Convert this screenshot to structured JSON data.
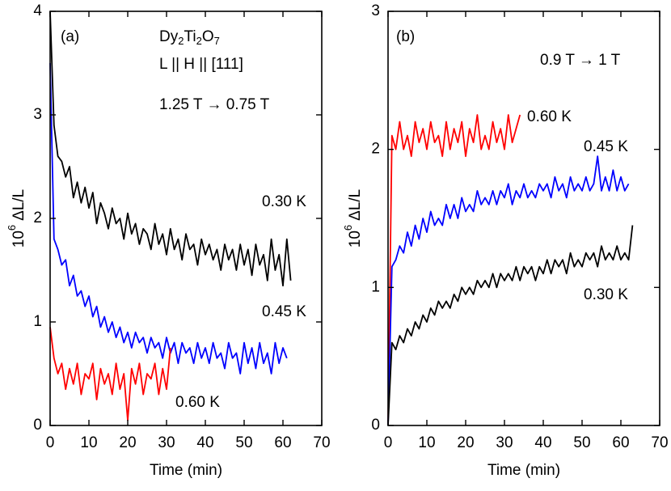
{
  "chart_data": [
    {
      "type": "line",
      "xlabel": "Time (min)",
      "ylabel": [
        "10",
        "6",
        "ΔL/L"
      ],
      "annotations": [
        "(a)",
        "L || H || [111]",
        "1.25 T → 0.75 T"
      ],
      "compound": [
        "Dy",
        "2",
        "Ti",
        "2",
        "O",
        "7"
      ],
      "xlim": [
        0,
        70
      ],
      "ylim": [
        0,
        4
      ],
      "xticks": [
        0,
        10,
        20,
        30,
        40,
        50,
        60,
        70
      ],
      "yticks": [
        0,
        1,
        2,
        3,
        4
      ],
      "series": [
        {
          "name": "0.30 K",
          "color": "#000000",
          "x": [
            0,
            1,
            2,
            3,
            4,
            5,
            6,
            7,
            8,
            9,
            10,
            11,
            12,
            13,
            14,
            15,
            16,
            17,
            18,
            19,
            20,
            21,
            22,
            23,
            24,
            25,
            26,
            27,
            28,
            29,
            30,
            31,
            32,
            33,
            34,
            35,
            36,
            37,
            38,
            39,
            40,
            41,
            42,
            43,
            44,
            45,
            46,
            47,
            48,
            49,
            50,
            51,
            52,
            53,
            54,
            55,
            56,
            57,
            58,
            59,
            60,
            61,
            62
          ],
          "values": [
            4.0,
            2.9,
            2.6,
            2.55,
            2.4,
            2.5,
            2.2,
            2.35,
            2.15,
            2.3,
            2.1,
            2.25,
            1.95,
            2.15,
            2.05,
            1.9,
            2.1,
            1.95,
            2.0,
            1.8,
            2.05,
            1.85,
            1.95,
            1.75,
            1.9,
            1.85,
            1.7,
            1.95,
            1.75,
            1.85,
            1.65,
            1.9,
            1.7,
            1.8,
            1.6,
            1.85,
            1.7,
            1.75,
            1.55,
            1.8,
            1.65,
            1.75,
            1.6,
            1.7,
            1.5,
            1.75,
            1.6,
            1.7,
            1.5,
            1.75,
            1.55,
            1.7,
            1.45,
            1.75,
            1.55,
            1.65,
            1.4,
            1.8,
            1.5,
            1.65,
            1.35,
            1.8,
            1.4
          ]
        },
        {
          "name": "0.45 K",
          "color": "#0000ff",
          "x": [
            0,
            1,
            2,
            3,
            4,
            5,
            6,
            7,
            8,
            9,
            10,
            11,
            12,
            13,
            14,
            15,
            16,
            17,
            18,
            19,
            20,
            21,
            22,
            23,
            24,
            25,
            26,
            27,
            28,
            29,
            30,
            31,
            32,
            33,
            34,
            35,
            36,
            37,
            38,
            39,
            40,
            41,
            42,
            43,
            44,
            45,
            46,
            47,
            48,
            49,
            50,
            51,
            52,
            53,
            54,
            55,
            56,
            57,
            58,
            59,
            60,
            61
          ],
          "values": [
            3.5,
            1.8,
            1.7,
            1.55,
            1.6,
            1.35,
            1.45,
            1.25,
            1.3,
            1.15,
            1.25,
            1.05,
            1.15,
            0.95,
            1.05,
            0.9,
            1.0,
            0.85,
            0.95,
            0.8,
            0.9,
            0.75,
            0.9,
            0.8,
            0.85,
            0.7,
            0.85,
            0.75,
            0.8,
            0.65,
            0.85,
            0.7,
            0.8,
            0.6,
            0.8,
            0.7,
            0.75,
            0.6,
            0.8,
            0.65,
            0.75,
            0.6,
            0.8,
            0.65,
            0.7,
            0.55,
            0.8,
            0.65,
            0.7,
            0.5,
            0.8,
            0.6,
            0.75,
            0.55,
            0.8,
            0.6,
            0.7,
            0.5,
            0.8,
            0.6,
            0.75,
            0.65
          ]
        },
        {
          "name": "0.60 K",
          "color": "#ff0000",
          "x": [
            0,
            1,
            2,
            3,
            4,
            5,
            6,
            7,
            8,
            9,
            10,
            11,
            12,
            13,
            14,
            15,
            16,
            17,
            18,
            19,
            20,
            21,
            22,
            23,
            24,
            25,
            26,
            27,
            28,
            29,
            30,
            31
          ],
          "values": [
            0.95,
            0.65,
            0.5,
            0.6,
            0.35,
            0.55,
            0.4,
            0.6,
            0.3,
            0.5,
            0.45,
            0.6,
            0.25,
            0.55,
            0.4,
            0.5,
            0.3,
            0.6,
            0.35,
            0.5,
            0.05,
            0.55,
            0.4,
            0.6,
            0.3,
            0.5,
            0.45,
            0.6,
            0.3,
            0.55,
            0.35,
            0.75
          ]
        }
      ]
    },
    {
      "type": "line",
      "xlabel": "Time (min)",
      "ylabel": [
        "10",
        "6",
        "ΔL/L"
      ],
      "annotations": [
        "(b)",
        "0.9 T → 1 T"
      ],
      "xlim": [
        0,
        70
      ],
      "ylim": [
        0,
        3
      ],
      "xticks": [
        0,
        10,
        20,
        30,
        40,
        50,
        60,
        70
      ],
      "yticks": [
        0,
        1,
        2,
        3
      ],
      "series": [
        {
          "name": "0.60 K",
          "color": "#ff0000",
          "x": [
            0,
            1,
            2,
            3,
            4,
            5,
            6,
            7,
            8,
            9,
            10,
            11,
            12,
            13,
            14,
            15,
            16,
            17,
            18,
            19,
            20,
            21,
            22,
            23,
            24,
            25,
            26,
            27,
            28,
            29,
            30,
            31,
            32,
            33,
            34
          ],
          "values": [
            0,
            2.1,
            2.0,
            2.2,
            2.0,
            2.1,
            1.95,
            2.2,
            2.05,
            2.15,
            2.0,
            2.2,
            2.05,
            2.1,
            1.95,
            2.2,
            2.0,
            2.15,
            2.05,
            2.2,
            1.95,
            2.15,
            2.05,
            2.25,
            2.0,
            2.1,
            2.0,
            2.2,
            2.05,
            2.15,
            2.0,
            2.25,
            2.05,
            2.15,
            2.25
          ]
        },
        {
          "name": "0.45 K",
          "color": "#0000ff",
          "x": [
            0,
            1,
            2,
            3,
            4,
            5,
            6,
            7,
            8,
            9,
            10,
            11,
            12,
            13,
            14,
            15,
            16,
            17,
            18,
            19,
            20,
            21,
            22,
            23,
            24,
            25,
            26,
            27,
            28,
            29,
            30,
            31,
            32,
            33,
            34,
            35,
            36,
            37,
            38,
            39,
            40,
            41,
            42,
            43,
            44,
            45,
            46,
            47,
            48,
            49,
            50,
            51,
            52,
            53,
            54,
            55,
            56,
            57,
            58,
            59,
            60,
            61,
            62
          ],
          "values": [
            0,
            1.15,
            1.2,
            1.3,
            1.25,
            1.4,
            1.3,
            1.45,
            1.35,
            1.5,
            1.4,
            1.55,
            1.45,
            1.5,
            1.45,
            1.6,
            1.5,
            1.6,
            1.5,
            1.65,
            1.55,
            1.6,
            1.55,
            1.7,
            1.6,
            1.65,
            1.6,
            1.7,
            1.6,
            1.7,
            1.65,
            1.75,
            1.6,
            1.7,
            1.65,
            1.75,
            1.65,
            1.7,
            1.65,
            1.75,
            1.7,
            1.75,
            1.65,
            1.8,
            1.7,
            1.75,
            1.65,
            1.8,
            1.7,
            1.75,
            1.7,
            1.8,
            1.7,
            1.75,
            1.95,
            1.7,
            1.8,
            1.7,
            1.85,
            1.7,
            1.8,
            1.7,
            1.75
          ]
        },
        {
          "name": "0.30 K",
          "color": "#000000",
          "x": [
            0,
            1,
            2,
            3,
            4,
            5,
            6,
            7,
            8,
            9,
            10,
            11,
            12,
            13,
            14,
            15,
            16,
            17,
            18,
            19,
            20,
            21,
            22,
            23,
            24,
            25,
            26,
            27,
            28,
            29,
            30,
            31,
            32,
            33,
            34,
            35,
            36,
            37,
            38,
            39,
            40,
            41,
            42,
            43,
            44,
            45,
            46,
            47,
            48,
            49,
            50,
            51,
            52,
            53,
            54,
            55,
            56,
            57,
            58,
            59,
            60,
            61,
            62,
            63
          ],
          "values": [
            0,
            0.6,
            0.55,
            0.65,
            0.6,
            0.7,
            0.65,
            0.75,
            0.7,
            0.8,
            0.75,
            0.85,
            0.8,
            0.9,
            0.85,
            0.9,
            0.85,
            0.95,
            0.9,
            1.0,
            0.95,
            1.0,
            0.95,
            1.05,
            1.0,
            1.05,
            1.0,
            1.1,
            1.0,
            1.1,
            1.05,
            1.1,
            1.05,
            1.15,
            1.05,
            1.15,
            1.1,
            1.15,
            1.05,
            1.15,
            1.1,
            1.2,
            1.1,
            1.2,
            1.15,
            1.2,
            1.1,
            1.25,
            1.15,
            1.2,
            1.15,
            1.25,
            1.2,
            1.25,
            1.15,
            1.3,
            1.2,
            1.25,
            1.2,
            1.3,
            1.2,
            1.25,
            1.2,
            1.45
          ]
        }
      ]
    }
  ]
}
